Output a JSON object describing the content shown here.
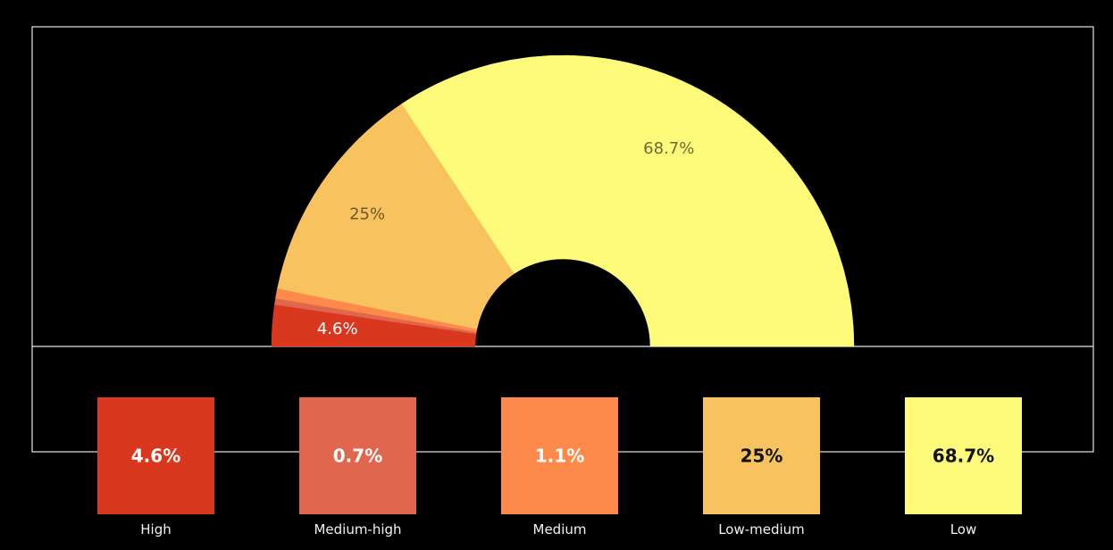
{
  "chart_data": {
    "type": "pie",
    "variant": "semi-donut",
    "series": [
      {
        "name": "High",
        "value": 4.6,
        "label": "4.6%",
        "color": "#d9371e"
      },
      {
        "name": "Medium-high",
        "value": 0.7,
        "label": "0.7%",
        "color": "#e0664e"
      },
      {
        "name": "Medium",
        "value": 1.1,
        "label": "1.1%",
        "color": "#fd8a4a"
      },
      {
        "name": "Low-medium",
        "value": 25,
        "label": "25%",
        "color": "#f8c25e"
      },
      {
        "name": "Low",
        "value": 68.7,
        "label": "68.7%",
        "color": "#fefb7b"
      }
    ],
    "slice_labels_shown": [
      "High",
      "Low-medium",
      "Low"
    ],
    "legend_placement": "bottom"
  }
}
